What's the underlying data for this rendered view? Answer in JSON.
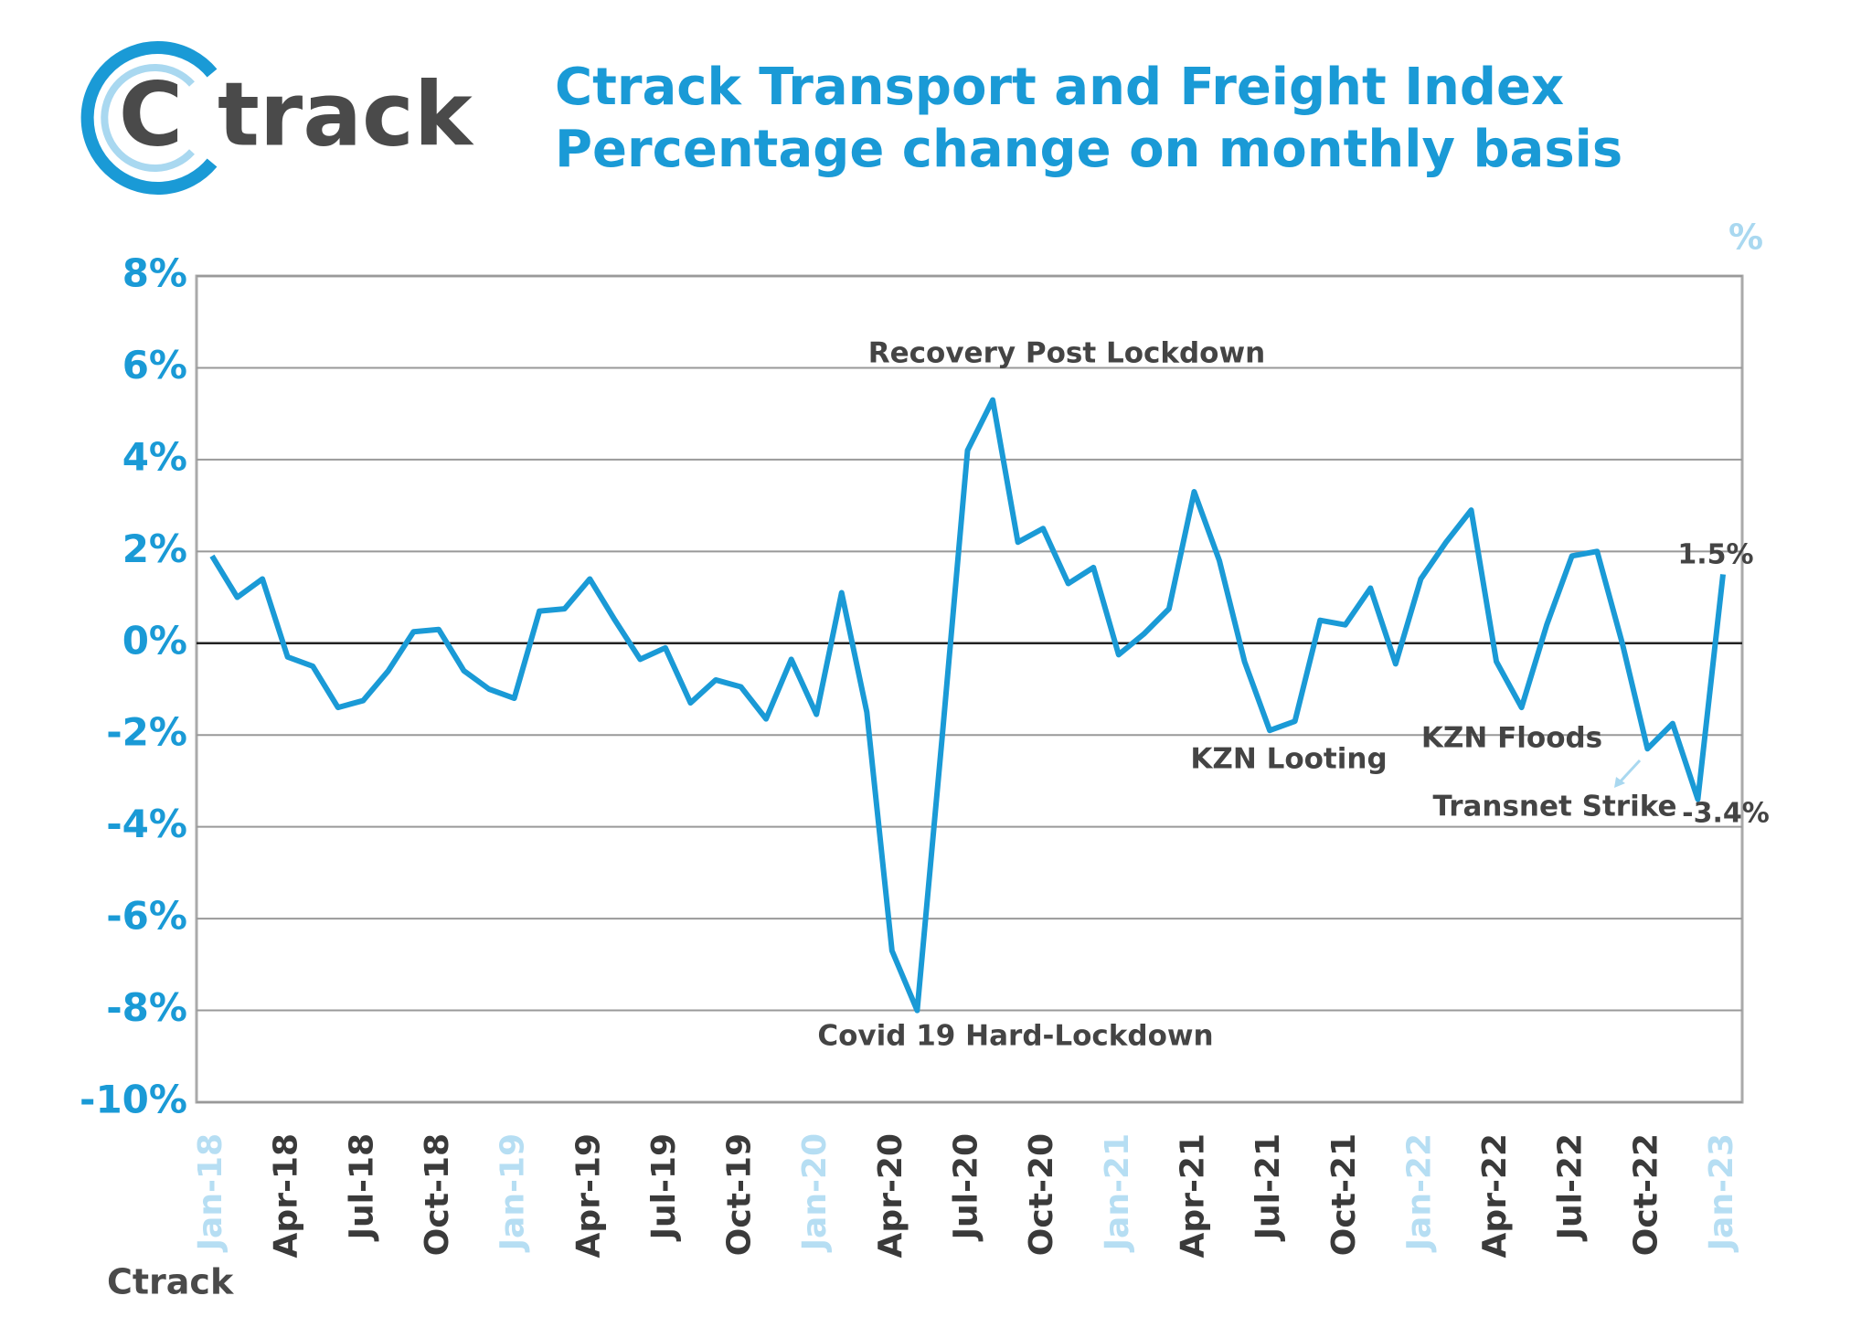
{
  "logo": {
    "mark": "C",
    "text": "track"
  },
  "source": "Ctrack",
  "chart_data": {
    "type": "line",
    "title": "Ctrack Transport and Freight Index",
    "subtitle": "Percentage change on monthly basis",
    "y_unit": "%",
    "color": "#1a9ad6",
    "grid": true,
    "categories": [
      "Jan-18",
      null,
      null,
      "Apr-18",
      null,
      null,
      "Jul-18",
      null,
      null,
      "Oct-18",
      null,
      null,
      "Jan-19",
      null,
      null,
      "Apr-19",
      null,
      null,
      "Jul-19",
      null,
      null,
      "Oct-19",
      null,
      null,
      "Jan-20",
      null,
      null,
      "Apr-20",
      null,
      null,
      "Jul-20",
      null,
      null,
      "Oct-20",
      null,
      null,
      "Jan-21",
      null,
      null,
      "Apr-21",
      null,
      null,
      "Jul-21",
      null,
      null,
      "Oct-21",
      null,
      null,
      "Jan-22",
      null,
      null,
      "Apr-22",
      null,
      null,
      "Jul-22",
      null,
      null,
      "Oct-22",
      null,
      null,
      "Jan-23"
    ],
    "values": [
      1.9,
      1.0,
      1.4,
      -0.3,
      -0.5,
      -1.4,
      -1.25,
      -0.6,
      0.25,
      0.3,
      -0.6,
      -1.0,
      -1.2,
      0.7,
      0.75,
      1.4,
      0.5,
      -0.35,
      -0.1,
      -1.3,
      -0.8,
      -0.95,
      -1.65,
      -0.35,
      -1.55,
      1.1,
      -1.5,
      -6.7,
      -8.0,
      -2.0,
      4.2,
      5.3,
      2.2,
      2.5,
      1.3,
      1.65,
      -0.25,
      0.2,
      0.75,
      3.3,
      1.8,
      -0.4,
      -1.9,
      -1.7,
      0.5,
      0.4,
      1.2,
      -0.45,
      1.4,
      2.2,
      2.9,
      -0.4,
      -1.4,
      0.4,
      1.9,
      2.0,
      0.0,
      -2.3,
      -1.75,
      -3.4,
      1.5
    ],
    "value_labels": [
      null,
      null,
      null,
      null,
      null,
      null,
      null,
      null,
      null,
      null,
      null,
      null,
      null,
      null,
      null,
      null,
      null,
      null,
      null,
      null,
      null,
      null,
      null,
      null,
      null,
      null,
      null,
      null,
      null,
      null,
      null,
      null,
      null,
      null,
      null,
      null,
      null,
      null,
      null,
      null,
      null,
      null,
      null,
      null,
      null,
      null,
      null,
      null,
      null,
      null,
      null,
      null,
      null,
      null,
      null,
      null,
      null,
      null,
      null,
      "-3.4%",
      "1.5%"
    ],
    "ylim": [
      -10,
      8
    ],
    "yticks": [
      {
        "value": 8,
        "label": "8%"
      },
      {
        "value": 6,
        "label": "6%"
      },
      {
        "value": 4,
        "label": "4%"
      },
      {
        "value": 2,
        "label": "2%"
      },
      {
        "value": 0,
        "label": "0%"
      },
      {
        "value": -2,
        "label": "-2%"
      },
      {
        "value": -4,
        "label": "-4%"
      },
      {
        "value": -6,
        "label": "-6%"
      },
      {
        "value": -8,
        "label": "-8%"
      },
      {
        "value": -10,
        "label": "-10%"
      }
    ],
    "annotations": [
      "Recovery Post Lockdown",
      "Covid 19 Hard-Lockdown",
      "KZN Looting",
      "KZN Floods",
      "Transnet Strike"
    ]
  }
}
